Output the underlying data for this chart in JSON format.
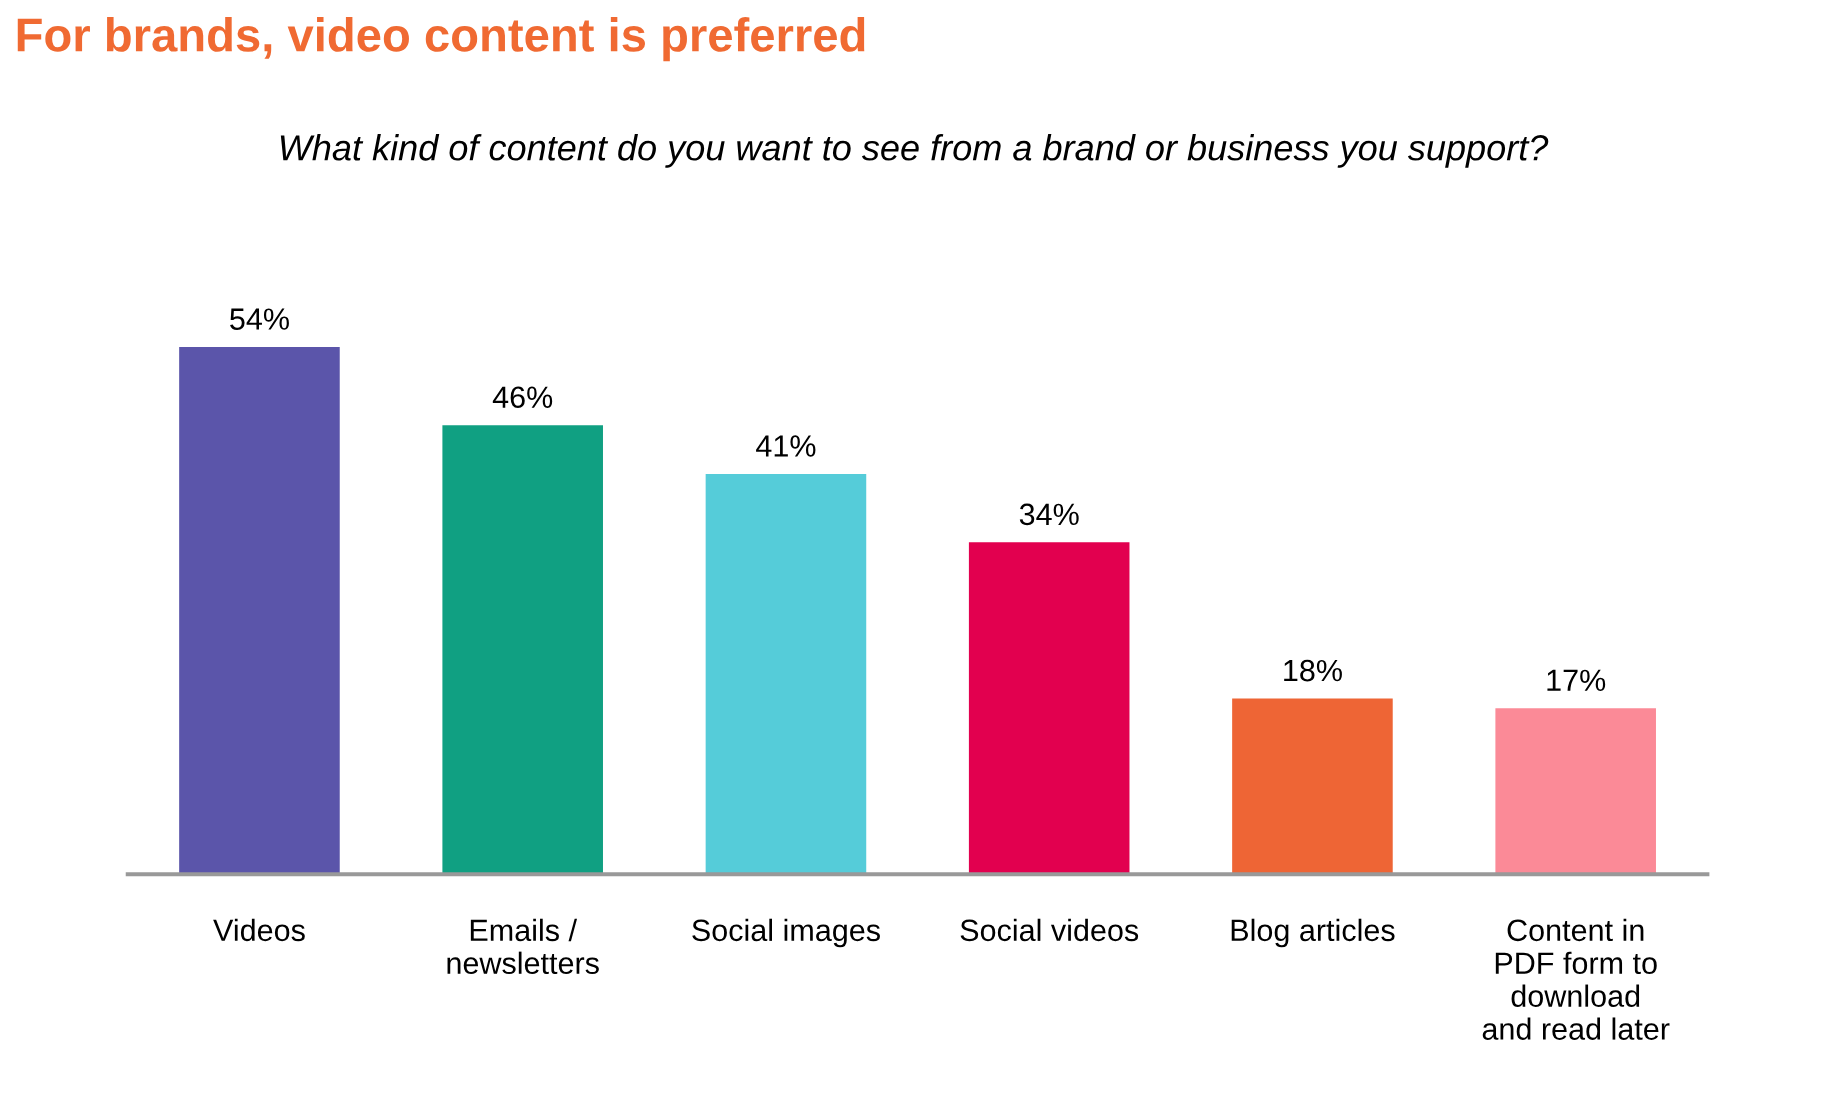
{
  "chart_data": {
    "type": "bar",
    "title": "For brands, video content is preferred",
    "subtitle": "What kind of content do you want to see from a brand or business you support?",
    "categories": [
      "Videos",
      "Emails /\nnewsletters",
      "Social images",
      "Social videos",
      "Blog articles",
      "Content in\nPDF form to\ndownload\nand read later"
    ],
    "values": [
      54,
      46,
      41,
      34,
      18,
      17
    ],
    "value_labels": [
      "54%",
      "46%",
      "41%",
      "34%",
      "18%",
      "17%"
    ],
    "colors": [
      "#5b55aa",
      "#10a082",
      "#55ccd9",
      "#e2004f",
      "#ee6535",
      "#fb8a97"
    ],
    "grid": false
  }
}
